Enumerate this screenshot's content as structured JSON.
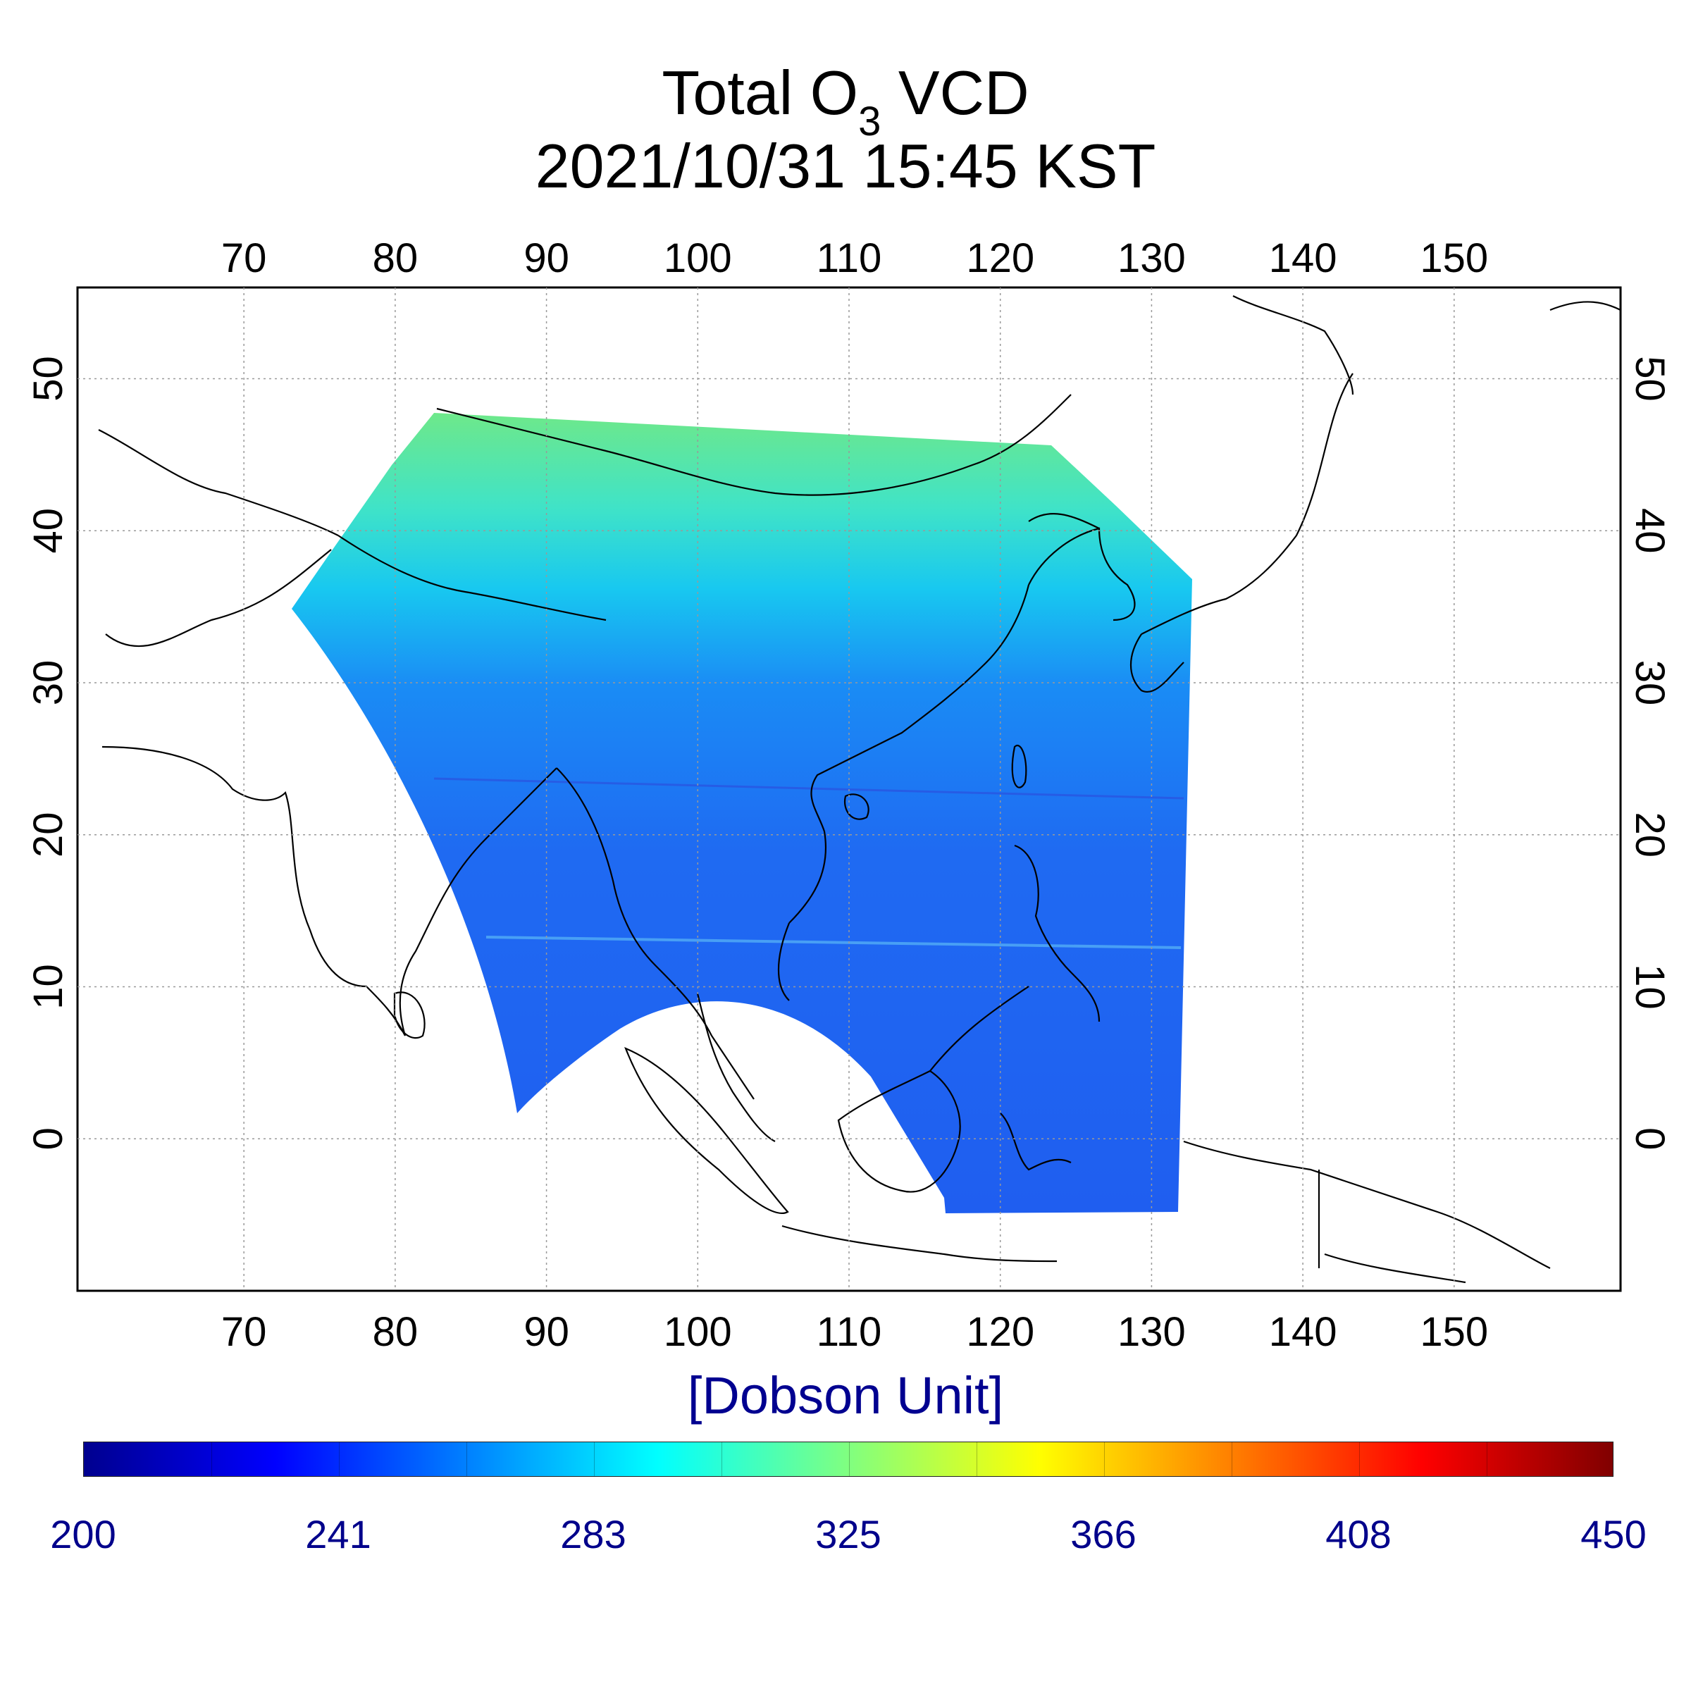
{
  "title": {
    "line1_pre": "Total O",
    "line1_sub": "3",
    "line1_post": " VCD",
    "line2": "2021/10/31 15:45 KST"
  },
  "map": {
    "lon_ticks": [
      "70",
      "80",
      "90",
      "100",
      "110",
      "120",
      "130",
      "140",
      "150"
    ],
    "lat_ticks": [
      "0",
      "10",
      "20",
      "30",
      "40",
      "50"
    ],
    "lon_range": [
      59,
      161
    ],
    "lat_range": [
      -10,
      56
    ],
    "projection": "equirectangular",
    "grid": true
  },
  "colorbar": {
    "label": "[Dobson Unit]",
    "ticks": [
      "200",
      "241",
      "283",
      "325",
      "366",
      "408",
      "450"
    ],
    "range": [
      200,
      450
    ],
    "colormap": "jet",
    "colors": [
      "#00008f",
      "#0000ff",
      "#0080ff",
      "#00ffff",
      "#80ff80",
      "#ffff00",
      "#ff8000",
      "#ff0000",
      "#800000"
    ]
  }
}
